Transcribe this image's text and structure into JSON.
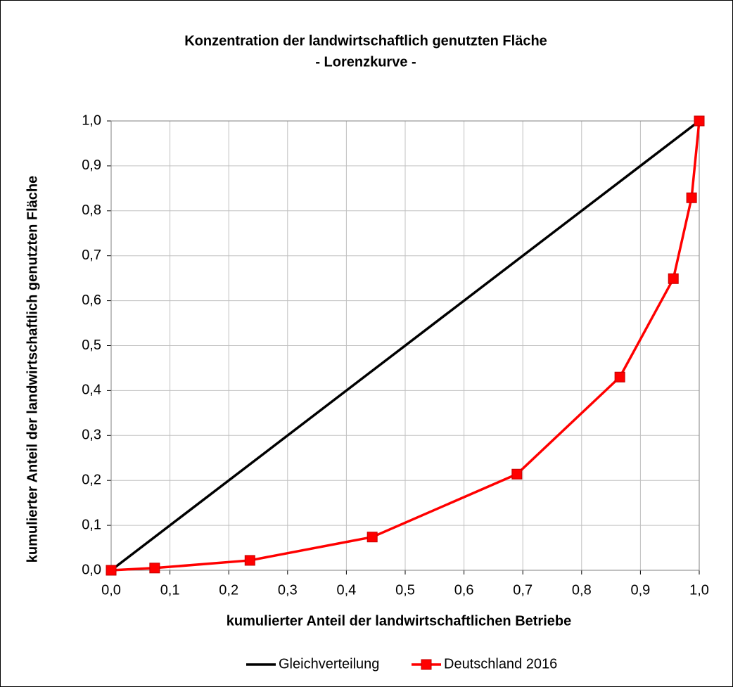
{
  "chart_data": {
    "type": "line",
    "title": "Konzentration der landwirtschaftlich genutzten Fläche",
    "subtitle": "- Lorenzkurve -",
    "x_label": "kumulierter Anteil der landwirtschaftlichen Betriebe",
    "y_label": "kumulierter Anteil der landwirtschaftlich genutzten Fläche",
    "xlim": [
      0,
      1
    ],
    "ylim": [
      0,
      1
    ],
    "xticks": [
      {
        "value": 0,
        "label": "0,0"
      },
      {
        "value": 0.1,
        "label": "0,1"
      },
      {
        "value": 0.2,
        "label": "0,2"
      },
      {
        "value": 0.3,
        "label": "0,3"
      },
      {
        "value": 0.4,
        "label": "0,4"
      },
      {
        "value": 0.5,
        "label": "0,5"
      },
      {
        "value": 0.6,
        "label": "0,6"
      },
      {
        "value": 0.7,
        "label": "0,7"
      },
      {
        "value": 0.8,
        "label": "0,8"
      },
      {
        "value": 0.9,
        "label": "0,9"
      },
      {
        "value": 1,
        "label": "1,0"
      }
    ],
    "yticks": [
      {
        "value": 0,
        "label": "0,0"
      },
      {
        "value": 0.1,
        "label": "0,1"
      },
      {
        "value": 0.2,
        "label": "0,2"
      },
      {
        "value": 0.3,
        "label": "0,3"
      },
      {
        "value": 0.4,
        "label": "0,4"
      },
      {
        "value": 0.5,
        "label": "0,5"
      },
      {
        "value": 0.6,
        "label": "0,6"
      },
      {
        "value": 0.7,
        "label": "0,7"
      },
      {
        "value": 0.8,
        "label": "0,8"
      },
      {
        "value": 0.9,
        "label": "0,9"
      },
      {
        "value": 1,
        "label": "1,0"
      }
    ],
    "grid": true,
    "legend": "bottom",
    "series": [
      {
        "name": "Gleichverteilung",
        "color": "#000000",
        "marker": "none",
        "x": [
          0,
          1
        ],
        "values": [
          0,
          1
        ]
      },
      {
        "name": "Deutschland 2016",
        "color": "#ff0000",
        "marker": "square",
        "x": [
          0,
          0.074,
          0.236,
          0.444,
          0.69,
          0.865,
          0.956,
          0.987,
          1
        ],
        "values": [
          0,
          0.005,
          0.022,
          0.074,
          0.214,
          0.43,
          0.649,
          0.829,
          1
        ]
      }
    ]
  }
}
